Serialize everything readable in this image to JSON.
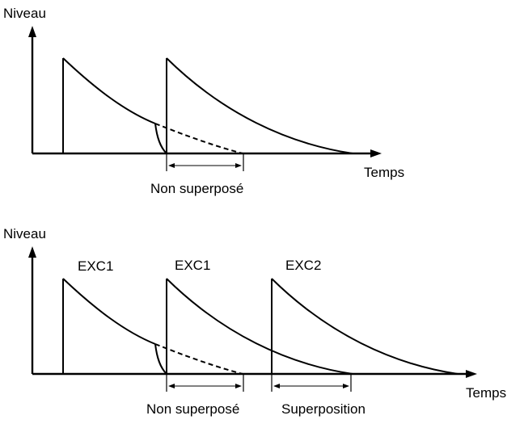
{
  "top_diagram": {
    "y_axis_label": "Niveau",
    "x_axis_label": "Temps",
    "interval_label": "Non superposé"
  },
  "bottom_diagram": {
    "y_axis_label": "Niveau",
    "x_axis_label": "Temps",
    "peak_labels": [
      "EXC1",
      "EXC1",
      "EXC2"
    ],
    "interval_labels": [
      "Non superposé",
      "Superposition"
    ]
  },
  "colors": {
    "line": "#000000",
    "background": "#ffffff"
  }
}
